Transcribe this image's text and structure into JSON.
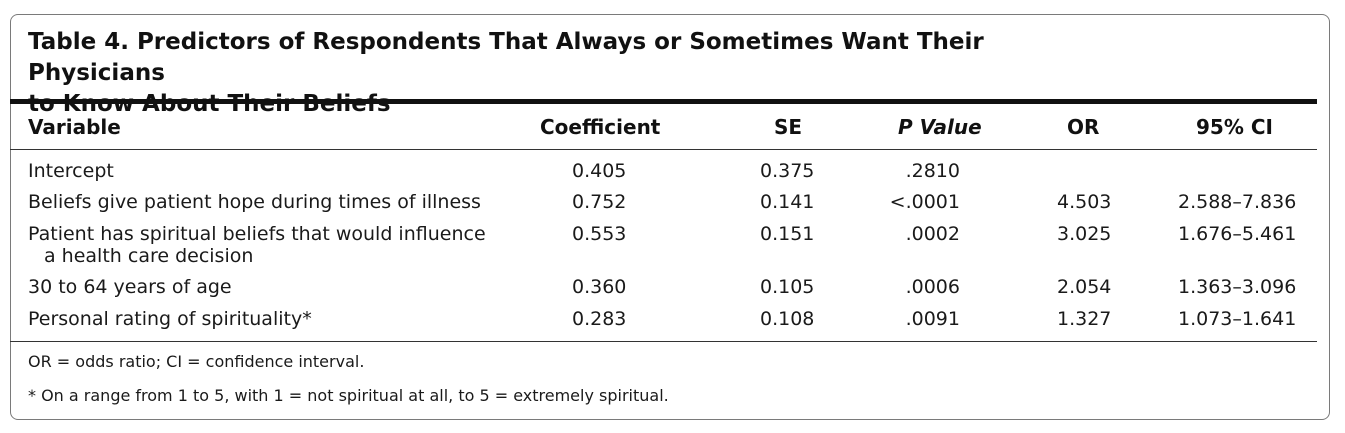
{
  "table": {
    "title_line1": "Table 4. Predictors of Respondents That Always or Sometimes Want Their Physicians",
    "title_line2": "to Know About Their Beliefs",
    "headers": {
      "variable": "Variable",
      "coefficient": "Coefficient",
      "se": "SE",
      "p_value": "P Value",
      "or": "OR",
      "ci": "95% CI"
    },
    "rows": [
      {
        "variable": "Intercept",
        "variable_cont": "",
        "coefficient": "0.405",
        "se": "0.375",
        "p_value": ".2810",
        "or": "",
        "ci": ""
      },
      {
        "variable": "Beliefs give patient hope during times of illness",
        "variable_cont": "",
        "coefficient": "0.752",
        "se": "0.141",
        "p_value": "<.0001",
        "or": "4.503",
        "ci": "2.588–7.836"
      },
      {
        "variable": "Patient has spiritual beliefs that would influence",
        "variable_cont": "a health care decision",
        "coefficient": "0.553",
        "se": "0.151",
        "p_value": ".0002",
        "or": "3.025",
        "ci": "1.676–5.461"
      },
      {
        "variable": "30 to 64 years of age",
        "variable_cont": "",
        "coefficient": "0.360",
        "se": "0.105",
        "p_value": ".0006",
        "or": "2.054",
        "ci": "1.363–3.096"
      },
      {
        "variable": "Personal rating of spirituality*",
        "variable_cont": "",
        "coefficient": "0.283",
        "se": "0.108",
        "p_value": ".0091",
        "or": "1.327",
        "ci": "1.073–1.641"
      }
    ],
    "footnotes": [
      "OR = odds ratio; CI = confidence interval.",
      "* On a range from 1 to 5, with 1 = not spiritual at all, to 5 = extremely spiritual."
    ]
  }
}
